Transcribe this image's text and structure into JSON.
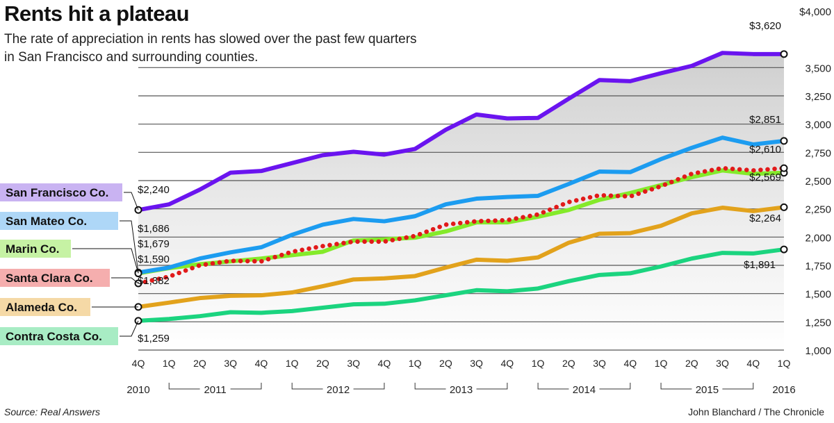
{
  "header": {
    "title": "Rents hit a plateau",
    "subtitle": "The rate of appreciation in rents has slowed over the past few quarters in San Francisco and surrounding counties."
  },
  "footer": {
    "source": "Source: Real Answers",
    "credit": "John Blanchard / The Chronicle"
  },
  "chart_data": {
    "type": "line",
    "title": "Rents hit a plateau",
    "xlabel": "",
    "ylabel": "",
    "ylim": [
      1000,
      4000
    ],
    "yticks": [
      1000,
      1250,
      1500,
      1750,
      2000,
      2250,
      2500,
      2750,
      3000,
      3250,
      3500,
      4000
    ],
    "ytick_labels": [
      "1,000",
      "1,250",
      "1,500",
      "1,750",
      "2,000",
      "2,250",
      "2,500",
      "2,750",
      "3,000",
      "3,250",
      "3,500",
      "$4,000"
    ],
    "x": [
      "4Q 2010",
      "1Q 2011",
      "2Q 2011",
      "3Q 2011",
      "4Q 2011",
      "1Q 2012",
      "2Q 2012",
      "3Q 2012",
      "4Q 2012",
      "1Q 2013",
      "2Q 2013",
      "3Q 2013",
      "4Q 2013",
      "1Q 2014",
      "2Q 2014",
      "3Q 2014",
      "4Q 2014",
      "1Q 2015",
      "2Q 2015",
      "3Q 2015",
      "4Q 2015",
      "1Q 2016"
    ],
    "quarter_labels": [
      "4Q",
      "1Q",
      "2Q",
      "3Q",
      "4Q",
      "1Q",
      "2Q",
      "3Q",
      "4Q",
      "1Q",
      "2Q",
      "3Q",
      "4Q",
      "1Q",
      "2Q",
      "3Q",
      "4Q",
      "1Q",
      "2Q",
      "3Q",
      "4Q",
      "1Q"
    ],
    "year_labels": [
      {
        "label": "2010",
        "from": 0,
        "to": 0,
        "bracket": false
      },
      {
        "label": "2011",
        "from": 1,
        "to": 4,
        "bracket": true
      },
      {
        "label": "2012",
        "from": 5,
        "to": 8,
        "bracket": true
      },
      {
        "label": "2013",
        "from": 9,
        "to": 12,
        "bracket": true
      },
      {
        "label": "2014",
        "from": 13,
        "to": 16,
        "bracket": true
      },
      {
        "label": "2015",
        "from": 17,
        "to": 20,
        "bracket": true
      },
      {
        "label": "2016",
        "from": 21,
        "to": 21,
        "bracket": false
      }
    ],
    "series": [
      {
        "name": "San Francisco Co.",
        "color": "#6a14ef",
        "label_bg": "#c9b3f2",
        "dashed": false,
        "start_label": "$2,240",
        "end_label": "$3,620",
        "values": [
          2240,
          2290,
          2420,
          2570,
          2585,
          2655,
          2725,
          2755,
          2730,
          2780,
          2950,
          3085,
          3050,
          3055,
          3225,
          3390,
          3380,
          3450,
          3515,
          3630,
          3620,
          3620
        ]
      },
      {
        "name": "San Mateo Co.",
        "color": "#1c9cf0",
        "label_bg": "#aed7f7",
        "dashed": false,
        "start_label": "$1,686",
        "end_label": "$2,851",
        "values": [
          1686,
          1730,
          1810,
          1865,
          1910,
          2020,
          2110,
          2160,
          2140,
          2185,
          2290,
          2340,
          2355,
          2365,
          2470,
          2580,
          2575,
          2690,
          2790,
          2880,
          2820,
          2851
        ]
      },
      {
        "name": "Marin Co.",
        "color": "#84ea2a",
        "label_bg": "#c6f2a4",
        "dashed": false,
        "start_label": "$1,679",
        "end_label": "$2,569",
        "values": [
          1679,
          1725,
          1760,
          1785,
          1810,
          1840,
          1870,
          1970,
          1980,
          1995,
          2050,
          2130,
          2130,
          2180,
          2240,
          2330,
          2390,
          2460,
          2530,
          2590,
          2560,
          2569
        ]
      },
      {
        "name": "Santa Clara Co.",
        "color": "#e11a1a",
        "label_bg": "#f5aeae",
        "dashed": true,
        "start_label": "$1,590",
        "end_label": "$2,610",
        "values": [
          1590,
          1650,
          1750,
          1790,
          1785,
          1870,
          1920,
          1960,
          1960,
          2010,
          2110,
          2140,
          2150,
          2200,
          2310,
          2370,
          2360,
          2450,
          2560,
          2610,
          2590,
          2610
        ]
      },
      {
        "name": "Alameda Co.",
        "color": "#e2a21c",
        "label_bg": "#f5d9a6",
        "dashed": false,
        "start_label": "$1,382",
        "end_label": "$2,264",
        "values": [
          1382,
          1420,
          1460,
          1480,
          1485,
          1510,
          1565,
          1625,
          1635,
          1655,
          1730,
          1800,
          1790,
          1820,
          1950,
          2030,
          2035,
          2100,
          2210,
          2260,
          2230,
          2264
        ]
      },
      {
        "name": "Contra Costa Co.",
        "color": "#1bd47f",
        "label_bg": "#a8ecc4",
        "dashed": false,
        "start_label": "$1,259",
        "end_label": "$1,891",
        "values": [
          1259,
          1275,
          1300,
          1335,
          1330,
          1345,
          1375,
          1405,
          1410,
          1440,
          1485,
          1530,
          1520,
          1545,
          1610,
          1665,
          1680,
          1740,
          1810,
          1860,
          1855,
          1891
        ]
      }
    ],
    "grid": true
  }
}
